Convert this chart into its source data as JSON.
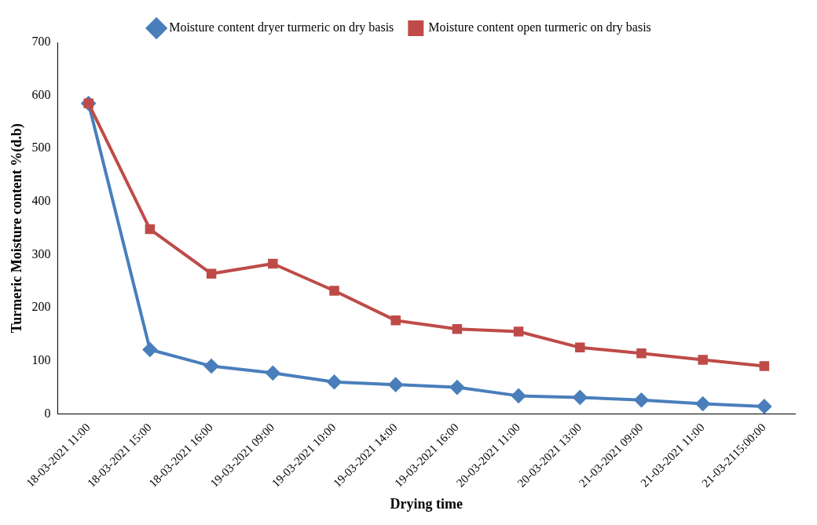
{
  "chart_data": {
    "type": "line",
    "xlabel": "Drying time",
    "ylabel": "Turmeric Moisture content %(d.b)",
    "categories": [
      "18-03-2021 11:00",
      "18-03-2021 15:00",
      "18-03-2021 16:00",
      "19-03-2021 09:00",
      "19-03-2021 10:00",
      "19-03-2021 14:00",
      "19-03-2021 16:00",
      "20-03-2021 11:00",
      "20-03-2021 13:00",
      "21-03-2021 09:00",
      "21-03-2021 11:00",
      "21-03-2115:00:00"
    ],
    "series": [
      {
        "name": "Moisture content dryer turmeric on dry basis",
        "color": "#4a7ebb",
        "marker": "diamond",
        "values": [
          585,
          121,
          90,
          77,
          60,
          55,
          50,
          34,
          31,
          26,
          19,
          14
        ]
      },
      {
        "name": "Moisture content open turmeric on dry basis",
        "color": "#be4b48",
        "marker": "square",
        "values": [
          585,
          348,
          264,
          283,
          232,
          176,
          160,
          155,
          125,
          114,
          102,
          90
        ]
      }
    ],
    "ylim": [
      0,
      700
    ],
    "yticks": [
      0,
      100,
      200,
      300,
      400,
      500,
      600,
      700
    ],
    "grid": false,
    "legend": "top",
    "line_style": "solid"
  }
}
